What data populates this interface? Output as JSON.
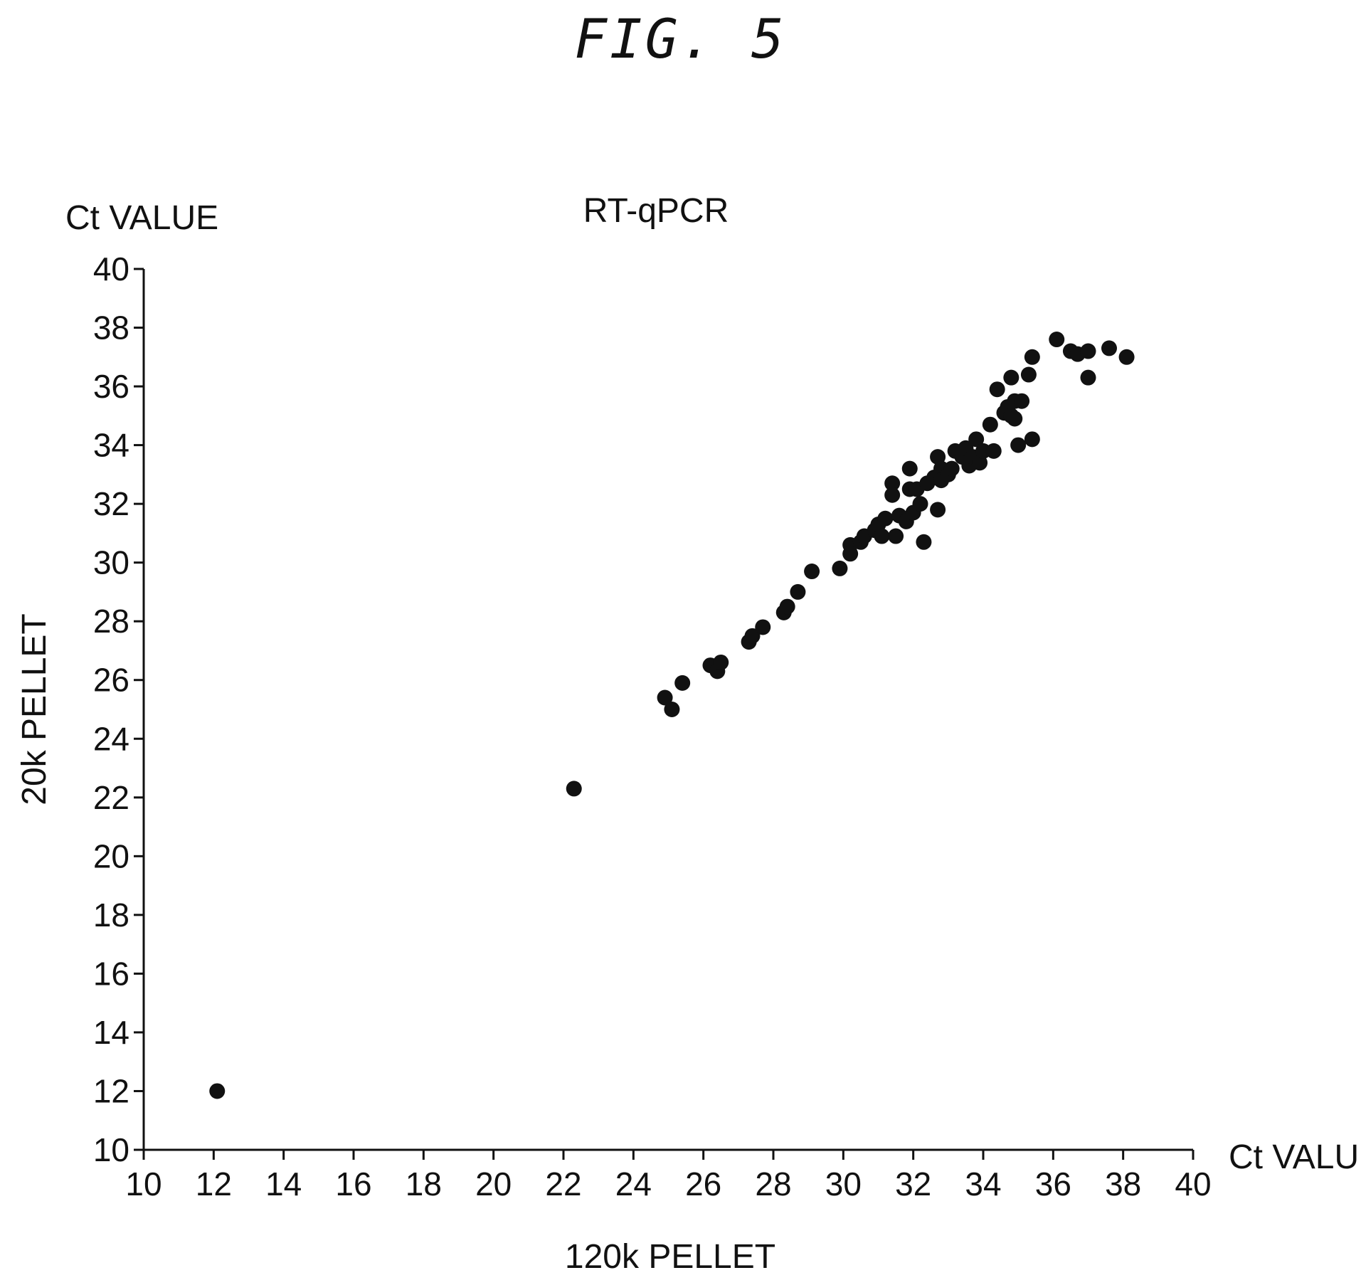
{
  "figure": {
    "label": "FIG. 5"
  },
  "chart_data": {
    "type": "scatter",
    "title": "RT-qPCR",
    "y_unit_label": "Ct VALUE",
    "x_unit_label": "Ct VALUE",
    "xlabel": "120k PELLET",
    "ylabel": "20k PELLET",
    "xlim": [
      10,
      40
    ],
    "ylim": [
      10,
      40
    ],
    "x_ticks": [
      10,
      12,
      14,
      16,
      18,
      20,
      22,
      24,
      26,
      28,
      30,
      32,
      34,
      36,
      38,
      40
    ],
    "y_ticks": [
      10,
      12,
      14,
      16,
      18,
      20,
      22,
      24,
      26,
      28,
      30,
      32,
      34,
      36,
      38,
      40
    ],
    "grid": false,
    "points": [
      [
        12.1,
        12.0
      ],
      [
        22.3,
        22.3
      ],
      [
        24.9,
        25.4
      ],
      [
        25.1,
        25.0
      ],
      [
        25.4,
        25.9
      ],
      [
        26.2,
        26.5
      ],
      [
        26.4,
        26.3
      ],
      [
        26.5,
        26.6
      ],
      [
        27.3,
        27.3
      ],
      [
        27.4,
        27.5
      ],
      [
        27.7,
        27.8
      ],
      [
        28.3,
        28.3
      ],
      [
        28.4,
        28.5
      ],
      [
        28.7,
        29.0
      ],
      [
        29.1,
        29.7
      ],
      [
        29.9,
        29.8
      ],
      [
        30.2,
        30.6
      ],
      [
        30.2,
        30.3
      ],
      [
        30.5,
        30.7
      ],
      [
        30.6,
        30.9
      ],
      [
        30.9,
        31.1
      ],
      [
        31.0,
        31.3
      ],
      [
        31.1,
        30.9
      ],
      [
        31.2,
        31.5
      ],
      [
        31.4,
        32.7
      ],
      [
        31.4,
        32.3
      ],
      [
        31.5,
        30.9
      ],
      [
        31.6,
        31.6
      ],
      [
        31.8,
        31.4
      ],
      [
        31.9,
        33.2
      ],
      [
        31.9,
        32.5
      ],
      [
        32.0,
        31.7
      ],
      [
        32.1,
        32.5
      ],
      [
        32.2,
        32.0
      ],
      [
        32.3,
        30.7
      ],
      [
        32.4,
        32.7
      ],
      [
        32.6,
        32.9
      ],
      [
        32.7,
        31.8
      ],
      [
        32.7,
        33.6
      ],
      [
        32.8,
        33.2
      ],
      [
        32.8,
        32.8
      ],
      [
        33.0,
        33.0
      ],
      [
        33.1,
        33.2
      ],
      [
        33.2,
        33.8
      ],
      [
        33.4,
        33.6
      ],
      [
        33.5,
        33.9
      ],
      [
        33.6,
        33.3
      ],
      [
        33.7,
        33.6
      ],
      [
        33.8,
        34.2
      ],
      [
        33.9,
        33.4
      ],
      [
        34.0,
        33.8
      ],
      [
        34.2,
        34.7
      ],
      [
        34.3,
        33.8
      ],
      [
        34.4,
        35.9
      ],
      [
        34.6,
        35.1
      ],
      [
        34.7,
        35.3
      ],
      [
        34.8,
        36.3
      ],
      [
        34.8,
        35.0
      ],
      [
        34.9,
        35.5
      ],
      [
        34.9,
        34.9
      ],
      [
        35.0,
        34.0
      ],
      [
        35.1,
        35.5
      ],
      [
        35.3,
        36.4
      ],
      [
        35.4,
        37.0
      ],
      [
        35.4,
        34.2
      ],
      [
        36.1,
        37.6
      ],
      [
        36.5,
        37.2
      ],
      [
        36.7,
        37.1
      ],
      [
        37.0,
        37.2
      ],
      [
        37.0,
        36.3
      ],
      [
        37.6,
        37.3
      ],
      [
        38.1,
        37.0
      ]
    ]
  }
}
